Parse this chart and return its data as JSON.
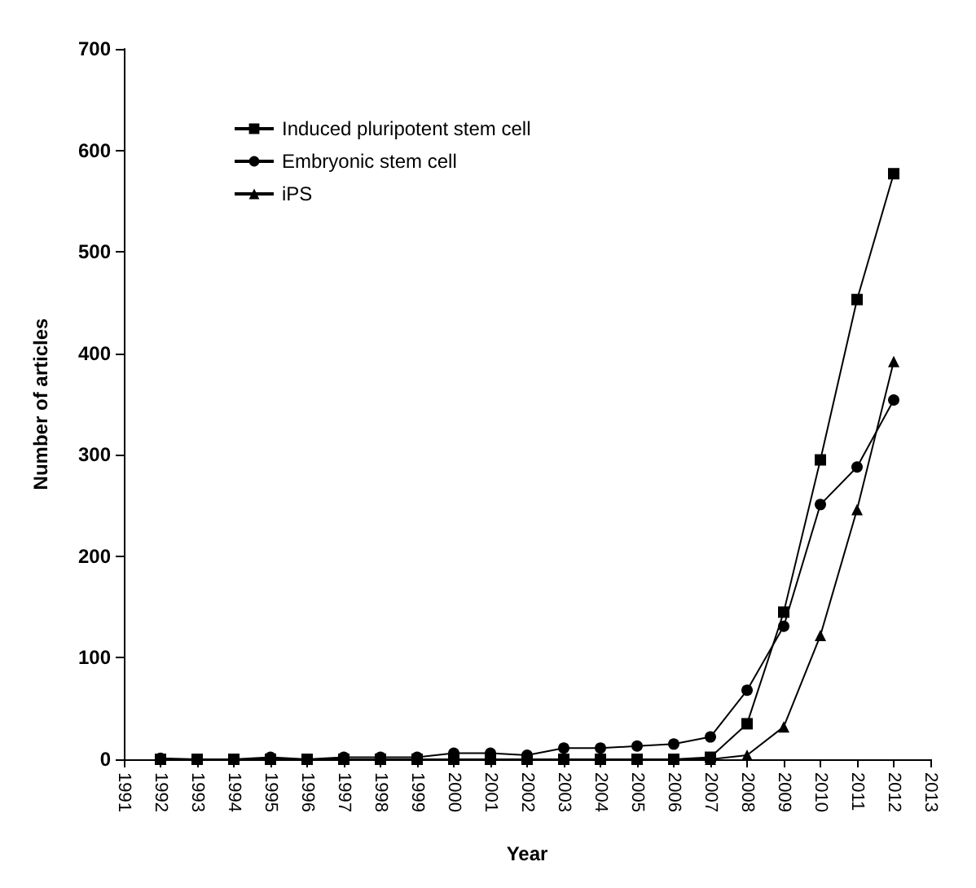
{
  "chart_data": {
    "type": "line",
    "xlabel": "Year",
    "ylabel": "Number of articles",
    "x": [
      1992,
      1993,
      1994,
      1995,
      1996,
      1997,
      1998,
      1999,
      2000,
      2001,
      2002,
      2003,
      2004,
      2005,
      2006,
      2007,
      2008,
      2009,
      2010,
      2011,
      2012
    ],
    "series": [
      {
        "name": "Induced pluripotent stem cell",
        "color": "#000000",
        "marker": "square",
        "values": [
          0,
          0,
          0,
          0,
          0,
          0,
          0,
          0,
          0,
          0,
          0,
          0,
          0,
          0,
          0,
          2,
          35,
          145,
          295,
          453,
          577
        ]
      },
      {
        "name": "Embryonic stem cell",
        "color": "#000000",
        "marker": "circle",
        "values": [
          1,
          0,
          0,
          2,
          0,
          2,
          2,
          2,
          6,
          6,
          4,
          11,
          11,
          13,
          15,
          22,
          68,
          131,
          251,
          288,
          354
        ]
      },
      {
        "name": "iPS",
        "color": "#000000",
        "marker": "triangle",
        "values": [
          null,
          null,
          null,
          null,
          null,
          null,
          null,
          null,
          0,
          0,
          0,
          0,
          0,
          0,
          0,
          0,
          4,
          32,
          122,
          246,
          392
        ]
      }
    ],
    "xlim": [
      1991,
      2013
    ],
    "xticks": [
      1991,
      1992,
      1993,
      1994,
      1995,
      1996,
      1997,
      1998,
      1999,
      2000,
      2001,
      2002,
      2003,
      2004,
      2005,
      2006,
      2007,
      2008,
      2009,
      2010,
      2011,
      2012,
      2013
    ],
    "ylim": [
      0,
      700
    ],
    "yticks": [
      0,
      100,
      200,
      300,
      400,
      500,
      600,
      700
    ],
    "grid": false,
    "legend": "top left",
    "line_style": "solid"
  }
}
